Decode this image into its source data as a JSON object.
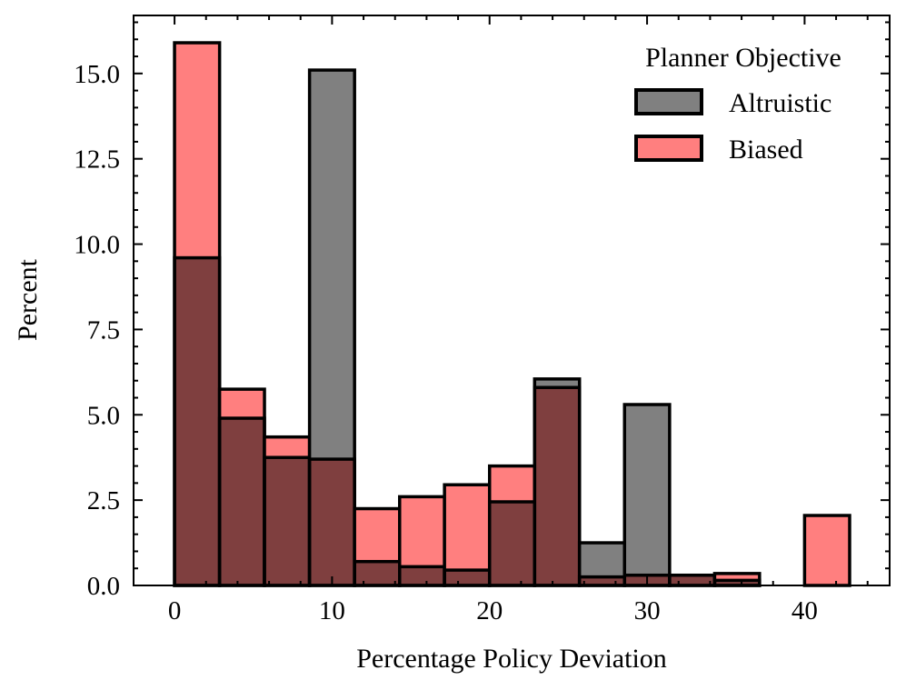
{
  "chart_data": {
    "type": "bar",
    "xlabel": "Percentage Policy Deviation",
    "ylabel": "Percent",
    "xlim": [
      -2.6,
      45.4
    ],
    "ylim": [
      0,
      16.7
    ],
    "x_ticks": [
      0,
      10,
      20,
      30,
      40
    ],
    "y_ticks": [
      0.0,
      2.5,
      5.0,
      7.5,
      10.0,
      12.5,
      15.0
    ],
    "y_tick_labels": [
      "0.0",
      "2.5",
      "5.0",
      "7.5",
      "10.0",
      "12.5",
      "15.0"
    ],
    "bin_edges": [
      0,
      2.86,
      5.71,
      8.57,
      11.43,
      14.29,
      17.14,
      20.0,
      22.86,
      25.71,
      28.57,
      31.43,
      34.29,
      37.14,
      40.0,
      42.86
    ],
    "legend": {
      "title": "Planner Objective",
      "position": "top-right"
    },
    "series": [
      {
        "name": "Altruistic",
        "color": "#808080",
        "values": [
          9.6,
          4.9,
          3.75,
          15.1,
          0.7,
          0.55,
          0.45,
          2.45,
          6.05,
          1.25,
          5.3,
          0.3,
          0.15,
          0.0,
          0.0
        ]
      },
      {
        "name": "Biased",
        "color": "#ff7f7f",
        "values": [
          15.9,
          5.75,
          4.35,
          3.7,
          2.25,
          2.6,
          2.95,
          3.5,
          5.8,
          0.25,
          0.3,
          0.3,
          0.35,
          0.0,
          2.05
        ]
      }
    ],
    "overlap_color": "#7f3f3f"
  }
}
